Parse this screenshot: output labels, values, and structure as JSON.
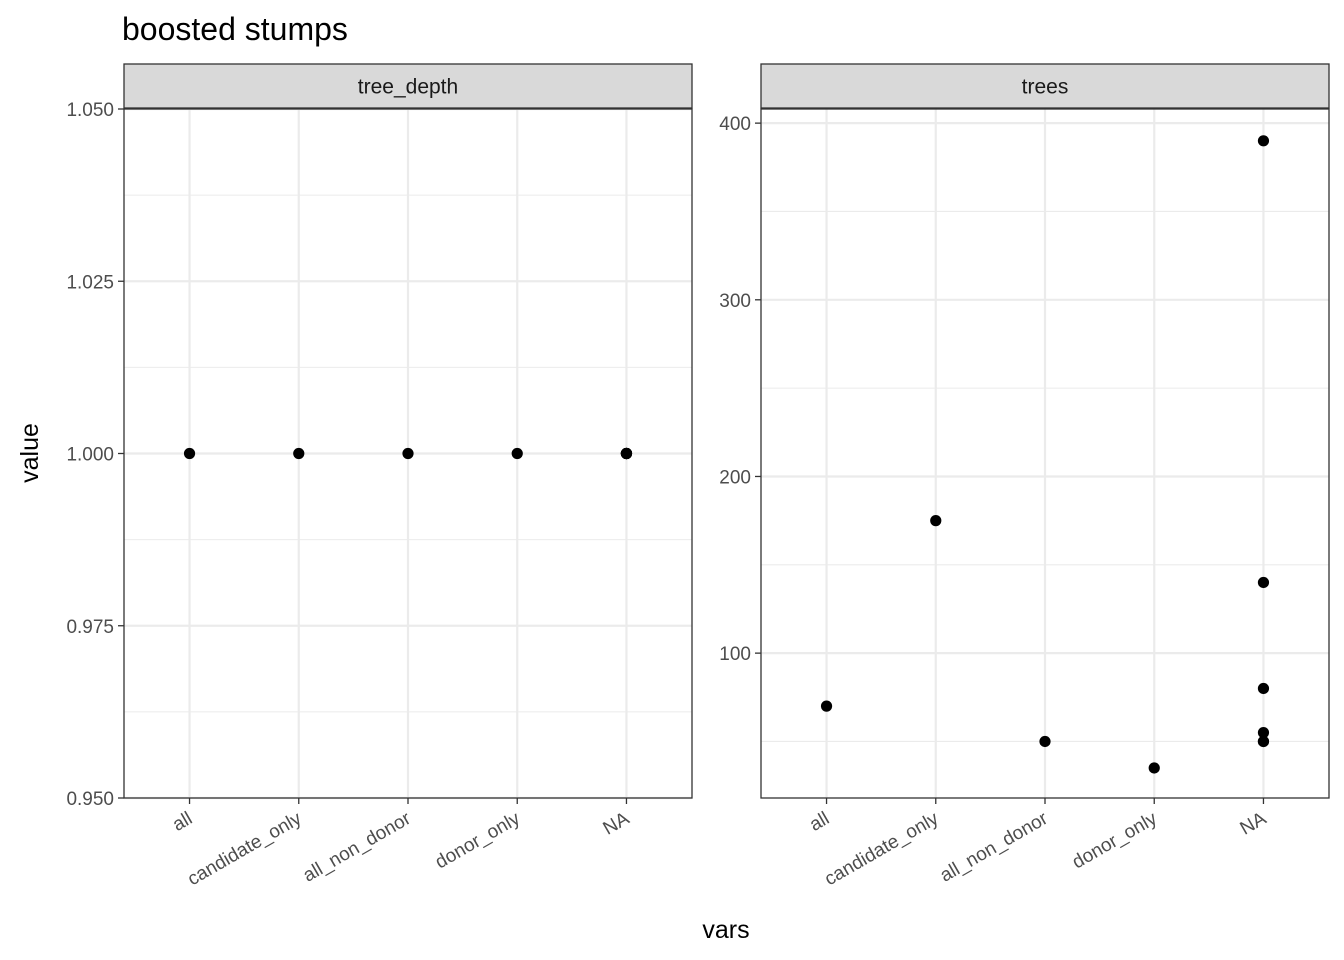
{
  "chart_data": {
    "type": "scatter",
    "title": "boosted stumps",
    "xlabel": "vars",
    "ylabel": "value",
    "grid": true,
    "categories": [
      "all",
      "candidate_only",
      "all_non_donor",
      "donor_only",
      "NA"
    ],
    "facets": [
      {
        "name": "tree_depth",
        "ylim": [
          0.95,
          1.05
        ],
        "y_ticks": [
          0.95,
          0.975,
          1.0,
          1.025,
          1.05
        ],
        "y_tick_labels": [
          "0.950",
          "0.975",
          "1.000",
          "1.025",
          "1.050"
        ],
        "points": [
          {
            "x": "all",
            "y": 1.0
          },
          {
            "x": "candidate_only",
            "y": 1.0
          },
          {
            "x": "all_non_donor",
            "y": 1.0
          },
          {
            "x": "donor_only",
            "y": 1.0
          },
          {
            "x": "NA",
            "y": 1.0
          },
          {
            "x": "NA",
            "y": 1.0
          },
          {
            "x": "NA",
            "y": 1.0
          },
          {
            "x": "NA",
            "y": 1.0
          },
          {
            "x": "NA",
            "y": 1.0
          },
          {
            "x": "NA",
            "y": 1.0
          }
        ]
      },
      {
        "name": "trees",
        "ylim": [
          18,
          408
        ],
        "y_ticks": [
          100,
          200,
          300,
          400
        ],
        "y_tick_labels": [
          "100",
          "200",
          "300",
          "400"
        ],
        "points": [
          {
            "x": "all",
            "y": 70
          },
          {
            "x": "candidate_only",
            "y": 175
          },
          {
            "x": "all_non_donor",
            "y": 50
          },
          {
            "x": "donor_only",
            "y": 35
          },
          {
            "x": "NA",
            "y": 390
          },
          {
            "x": "NA",
            "y": 140
          },
          {
            "x": "NA",
            "y": 80
          },
          {
            "x": "NA",
            "y": 55
          },
          {
            "x": "NA",
            "y": 50
          },
          {
            "x": "NA",
            "y": 50
          }
        ]
      }
    ]
  }
}
